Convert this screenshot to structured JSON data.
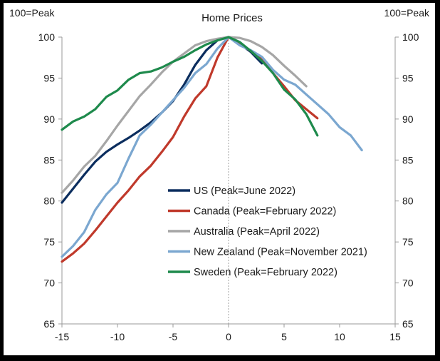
{
  "chart_data": {
    "type": "line",
    "title": "Home Prices",
    "left_unit_label": "100=Peak",
    "right_unit_label": "100=Peak",
    "xlim": [
      -15,
      15
    ],
    "ylim": [
      65,
      100
    ],
    "x_ticks": [
      "-15",
      "-10",
      "-5",
      "0",
      "5",
      "10",
      "15"
    ],
    "y_ticks": [
      "65",
      "70",
      "75",
      "80",
      "85",
      "90",
      "95",
      "100"
    ],
    "grid": false,
    "legend_placement": "center-right",
    "series": [
      {
        "name": "US (Peak=June 2022)",
        "color": "#0b2d5e",
        "points": [
          [
            -15,
            79.8
          ],
          [
            -14,
            81.5
          ],
          [
            -13,
            83.2
          ],
          [
            -12,
            84.8
          ],
          [
            -11,
            86
          ],
          [
            -10,
            86.9
          ],
          [
            -9,
            87.7
          ],
          [
            -8,
            88.6
          ],
          [
            -7,
            89.6
          ],
          [
            -6,
            90.8
          ],
          [
            -5,
            92.2
          ],
          [
            -4,
            94.2
          ],
          [
            -3,
            96.6
          ],
          [
            -2,
            98.4
          ],
          [
            -1,
            99.6
          ],
          [
            0,
            100
          ],
          [
            1,
            99.2
          ],
          [
            2,
            98.2
          ],
          [
            3,
            96.8
          ]
        ]
      },
      {
        "name": "Canada (Peak=February 2022)",
        "color": "#c0392b",
        "points": [
          [
            -15,
            72.6
          ],
          [
            -14,
            73.6
          ],
          [
            -13,
            74.8
          ],
          [
            -12,
            76.4
          ],
          [
            -11,
            78.1
          ],
          [
            -10,
            79.8
          ],
          [
            -9,
            81.3
          ],
          [
            -8,
            83
          ],
          [
            -7,
            84.3
          ],
          [
            -6,
            86
          ],
          [
            -5,
            87.8
          ],
          [
            -4,
            90.3
          ],
          [
            -3,
            92.5
          ],
          [
            -2,
            94
          ],
          [
            -1,
            97.5
          ],
          [
            0,
            100
          ],
          [
            1,
            99.3
          ],
          [
            2,
            98.3
          ],
          [
            3,
            97.3
          ],
          [
            4,
            95.6
          ],
          [
            5,
            94
          ],
          [
            6,
            92.3
          ],
          [
            7,
            91.2
          ],
          [
            8,
            90.1
          ]
        ]
      },
      {
        "name": "Australia (Peak=April 2022)",
        "color": "#a6a6a6",
        "points": [
          [
            -15,
            81
          ],
          [
            -14,
            82.5
          ],
          [
            -13,
            84.2
          ],
          [
            -12,
            85.5
          ],
          [
            -11,
            87.3
          ],
          [
            -10,
            89.2
          ],
          [
            -9,
            91
          ],
          [
            -8,
            92.8
          ],
          [
            -7,
            94.2
          ],
          [
            -6,
            95.7
          ],
          [
            -5,
            97
          ],
          [
            -4,
            98
          ],
          [
            -3,
            99
          ],
          [
            -2,
            99.5
          ],
          [
            -1,
            99.8
          ],
          [
            0,
            100
          ],
          [
            1,
            99.9
          ],
          [
            2,
            99.5
          ],
          [
            3,
            98.8
          ],
          [
            4,
            97.8
          ],
          [
            5,
            96.5
          ],
          [
            6,
            95.3
          ],
          [
            7,
            94
          ]
        ]
      },
      {
        "name": "New Zealand (Peak=November 2021)",
        "color": "#7ba7d0",
        "points": [
          [
            -15,
            73.2
          ],
          [
            -14,
            74.5
          ],
          [
            -13,
            76.2
          ],
          [
            -12,
            78.9
          ],
          [
            -11,
            80.8
          ],
          [
            -10,
            82.2
          ],
          [
            -9,
            85.2
          ],
          [
            -8,
            88
          ],
          [
            -7,
            89.3
          ],
          [
            -6,
            90.8
          ],
          [
            -5,
            92.3
          ],
          [
            -4,
            93.8
          ],
          [
            -3,
            95.6
          ],
          [
            -2,
            96.7
          ],
          [
            -1,
            98.6
          ],
          [
            0,
            100
          ],
          [
            1,
            99
          ],
          [
            2,
            98.4
          ],
          [
            3,
            97.6
          ],
          [
            4,
            96
          ],
          [
            5,
            94.8
          ],
          [
            6,
            94.2
          ],
          [
            7,
            93
          ],
          [
            8,
            91.8
          ],
          [
            9,
            90.6
          ],
          [
            10,
            89
          ],
          [
            11,
            88
          ],
          [
            12,
            86.2
          ]
        ]
      },
      {
        "name": "Sweden (Peak=February 2022)",
        "color": "#1e8a4c",
        "points": [
          [
            -15,
            88.7
          ],
          [
            -14,
            89.7
          ],
          [
            -13,
            90.3
          ],
          [
            -12,
            91.2
          ],
          [
            -11,
            92.7
          ],
          [
            -10,
            93.5
          ],
          [
            -9,
            94.8
          ],
          [
            -8,
            95.6
          ],
          [
            -7,
            95.8
          ],
          [
            -6,
            96.3
          ],
          [
            -5,
            97
          ],
          [
            -4,
            97.6
          ],
          [
            -3,
            98.4
          ],
          [
            -2,
            99.1
          ],
          [
            -1,
            99.6
          ],
          [
            0,
            100
          ],
          [
            1,
            99.4
          ],
          [
            2,
            98.3
          ],
          [
            3,
            97.1
          ],
          [
            4,
            95.6
          ],
          [
            5,
            93.6
          ],
          [
            6,
            92.4
          ],
          [
            7,
            90.6
          ],
          [
            8,
            88
          ]
        ]
      }
    ]
  }
}
